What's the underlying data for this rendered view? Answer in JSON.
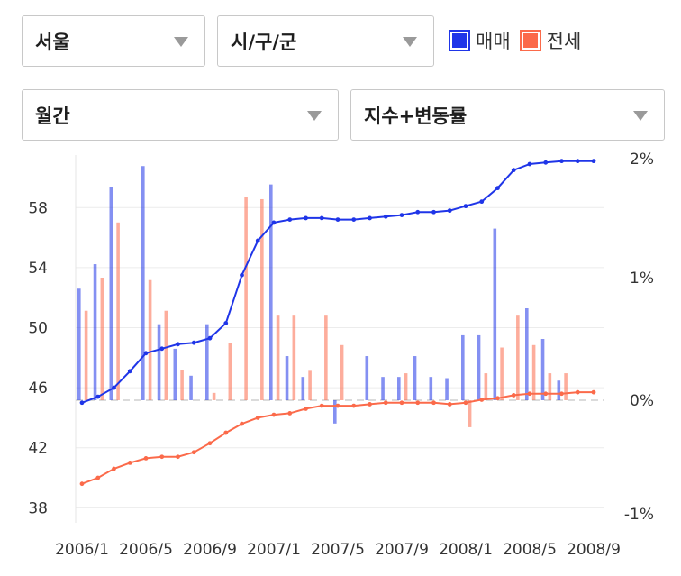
{
  "filters": {
    "region": "서울",
    "district": "시/구/군",
    "period": "월간",
    "metric": "지수+변동률"
  },
  "legend": {
    "sale": {
      "label": "매매",
      "color": "#1f35e8"
    },
    "jeonse": {
      "label": "전세",
      "color": "#fb6a4a"
    }
  },
  "chart_data": {
    "type": "bar+line",
    "x_tick_labels": [
      "2006/1",
      "2006/5",
      "2006/9",
      "2007/1",
      "2007/5",
      "2007/9",
      "2008/1",
      "2008/5",
      "2008/9"
    ],
    "y_left_ticks": [
      38,
      42,
      46,
      50,
      54,
      58
    ],
    "y_left_range": [
      37,
      61.5
    ],
    "y_right_ticks": [
      "2%",
      "1%",
      "0%",
      "-1%"
    ],
    "y_right_range": [
      -1,
      2
    ],
    "months": [
      "2006/1",
      "2006/2",
      "2006/3",
      "2006/4",
      "2006/5",
      "2006/6",
      "2006/7",
      "2006/8",
      "2006/9",
      "2006/10",
      "2006/11",
      "2006/12",
      "2007/1",
      "2007/2",
      "2007/3",
      "2007/4",
      "2007/5",
      "2007/6",
      "2007/7",
      "2007/8",
      "2007/9",
      "2007/10",
      "2007/11",
      "2007/12",
      "2008/1",
      "2008/2",
      "2008/3",
      "2008/4",
      "2008/5",
      "2008/6",
      "2008/7",
      "2008/8",
      "2008/9"
    ],
    "series": [
      {
        "name": "매매",
        "kind": "index_line",
        "color": "#1f35e8",
        "values": [
          45.0,
          45.4,
          46.0,
          47.1,
          48.3,
          48.6,
          48.9,
          49.0,
          49.3,
          50.3,
          53.5,
          55.8,
          57.0,
          57.2,
          57.3,
          57.3,
          57.2,
          57.2,
          57.3,
          57.4,
          57.5,
          57.7,
          57.7,
          57.8,
          58.1,
          58.4,
          59.3,
          60.5,
          60.9,
          61.0,
          61.1,
          61.1,
          61.1
        ]
      },
      {
        "name": "전세",
        "kind": "index_line",
        "color": "#fb6a4a",
        "values": [
          39.6,
          40.0,
          40.6,
          41.0,
          41.3,
          41.4,
          41.4,
          41.7,
          42.3,
          43.0,
          43.6,
          44.0,
          44.2,
          44.3,
          44.6,
          44.8,
          44.8,
          44.8,
          44.9,
          45.0,
          45.0,
          45.0,
          45.0,
          44.9,
          45.0,
          45.2,
          45.3,
          45.5,
          45.6,
          45.6,
          45.6,
          45.7,
          45.7
        ]
      },
      {
        "name": "매매",
        "kind": "change_bar",
        "color": "#1f35e8",
        "values": [
          0.91,
          1.11,
          1.74,
          0,
          1.91,
          0.62,
          0.42,
          0.2,
          0.62,
          0,
          0,
          0,
          1.76,
          0.36,
          0.19,
          0,
          -0.19,
          0,
          0.36,
          0.19,
          0.19,
          0.36,
          0.19,
          0.18,
          0.53,
          0.53,
          1.4,
          0,
          0.75,
          0.5,
          0.16,
          0,
          0
        ]
      },
      {
        "name": "전세",
        "kind": "change_bar",
        "color": "#fb6a4a",
        "values": [
          0.73,
          1.0,
          1.45,
          0,
          0.98,
          0.73,
          0.25,
          0,
          0.06,
          0.47,
          1.66,
          1.64,
          0.69,
          0.69,
          0.24,
          0.69,
          0.45,
          0,
          0,
          0,
          0.22,
          0,
          0,
          0,
          -0.22,
          0.22,
          0.43,
          0.69,
          0.45,
          0.22,
          0.22,
          0,
          0
        ]
      }
    ]
  }
}
